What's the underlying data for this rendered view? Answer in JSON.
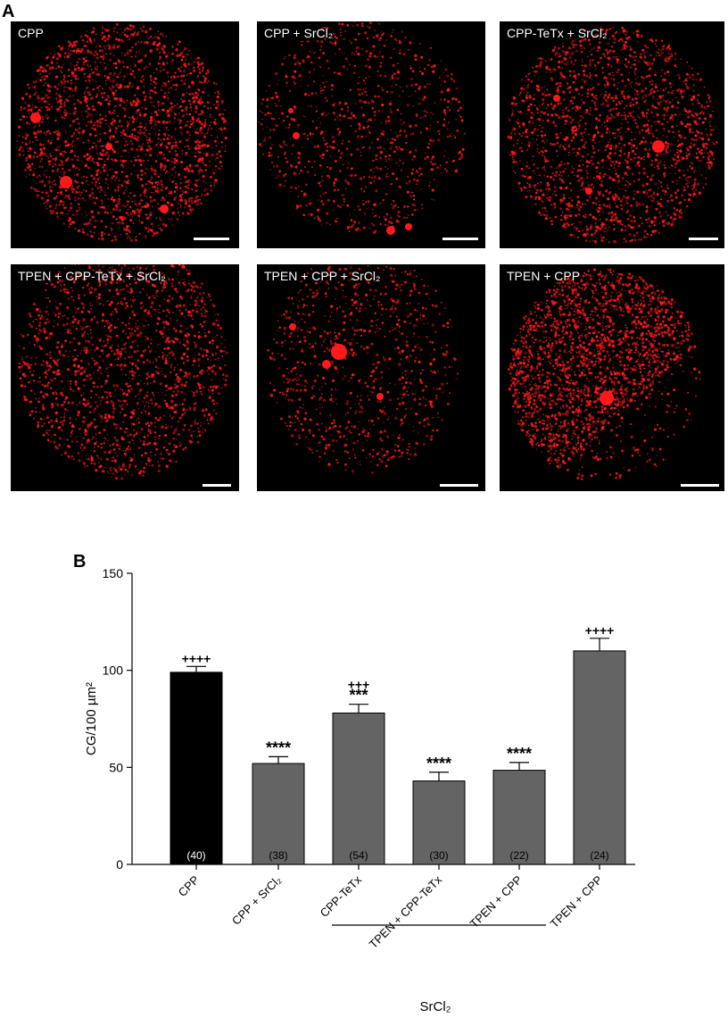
{
  "panel_labels": {
    "a": "A",
    "b": "B"
  },
  "micrographs": [
    {
      "label": "CPP"
    },
    {
      "label": "CPP + SrCl₂"
    },
    {
      "label": "CPP-TeTx + SrCl₂"
    },
    {
      "label": "TPEN + CPP-TeTx + SrCl₂"
    },
    {
      "label": "TPEN + CPP + SrCl₂"
    },
    {
      "label": "TPEN + CPP"
    }
  ],
  "colors": {
    "fluorescence": "#ff1a1a",
    "background": "#000000",
    "bar_control": "#000000",
    "bar_treatment": "#646464"
  },
  "chart_data": {
    "type": "bar",
    "ylabel": "CG/100 µm²",
    "ylim": [
      0,
      150
    ],
    "yticks": [
      "0",
      "50",
      "100",
      "150"
    ],
    "categories": [
      "CPP",
      "CPP + SrCl₂",
      "CPP-TeTx",
      "TPEN + CPP-TeTx",
      "TPEN + CPP",
      "TPEN + CPP"
    ],
    "values": [
      99,
      52,
      78,
      43,
      48.5,
      110
    ],
    "errors": [
      3,
      3.5,
      4.5,
      4.5,
      4,
      6.5
    ],
    "n_labels": [
      "(40)",
      "(38)",
      "(54)",
      "(30)",
      "(22)",
      "(24)"
    ],
    "annotations": [
      {
        "bar": 0,
        "lines": [
          "++++"
        ]
      },
      {
        "bar": 1,
        "lines": [
          "****"
        ]
      },
      {
        "bar": 2,
        "lines": [
          "+++",
          "***"
        ]
      },
      {
        "bar": 3,
        "lines": [
          "****"
        ]
      },
      {
        "bar": 4,
        "lines": [
          "****"
        ]
      },
      {
        "bar": 5,
        "lines": [
          "++++"
        ]
      }
    ],
    "group_label": "SrCl₂",
    "group_bars": [
      2,
      4
    ]
  }
}
